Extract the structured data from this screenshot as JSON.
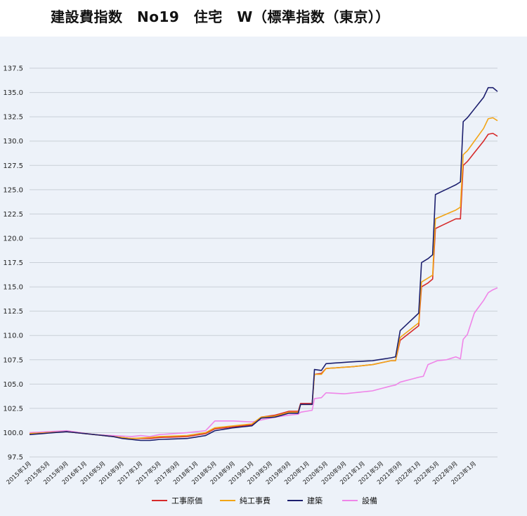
{
  "title": "建設費指数　No19　住宅　W（標準指数（東京））",
  "colors": {
    "background": "#edf2f9",
    "grid": "#c9cfd8"
  },
  "chart_data": {
    "type": "line",
    "ylim": [
      97.5,
      137.5
    ],
    "yticks": [
      "97.5",
      "100.0",
      "102.5",
      "105.0",
      "107.5",
      "110.0",
      "112.5",
      "115.0",
      "117.5",
      "120.0",
      "122.5",
      "125.0",
      "127.5",
      "130.0",
      "132.5",
      "135.0",
      "137.5"
    ],
    "grid": true,
    "legend_position": "bottom",
    "x_tick_labels": [
      "2015年1月",
      "2015年5月",
      "2015年9月",
      "2016年1月",
      "2016年5月",
      "2016年9月",
      "2017年1月",
      "2017年5月",
      "2017年9月",
      "2018年1月",
      "2018年5月",
      "2018年9月",
      "2019年1月",
      "2019年5月",
      "2019年9月",
      "2020年1月",
      "2020年5月",
      "2020年9月",
      "2021年1月",
      "2021年5月",
      "2021年9月",
      "2022年1月",
      "2022年5月",
      "2022年9月",
      "2023年1月"
    ],
    "n_points": 102,
    "series": [
      {
        "name": "工事原価",
        "color": "#d62a2a",
        "anchors": [
          [
            0,
            99.9
          ],
          [
            8,
            100.1
          ],
          [
            14,
            99.8
          ],
          [
            18,
            99.6
          ],
          [
            22,
            99.4
          ],
          [
            26,
            99.4
          ],
          [
            28,
            99.5
          ],
          [
            34,
            99.6
          ],
          [
            38,
            99.9
          ],
          [
            40,
            100.4
          ],
          [
            44,
            100.6
          ],
          [
            48,
            100.8
          ],
          [
            50,
            101.6
          ],
          [
            53,
            101.8
          ],
          [
            56,
            102.2
          ],
          [
            58,
            102.2
          ],
          [
            58.5,
            103.0
          ],
          [
            61,
            103.0
          ],
          [
            61.5,
            106.0
          ],
          [
            63,
            106.1
          ],
          [
            64,
            106.6
          ],
          [
            70,
            106.8
          ],
          [
            74,
            107.0
          ],
          [
            78,
            107.4
          ],
          [
            79,
            107.4
          ],
          [
            80,
            109.5
          ],
          [
            84,
            111.0
          ],
          [
            84.6,
            115.0
          ],
          [
            86,
            115.4
          ],
          [
            87,
            115.8
          ],
          [
            87.6,
            121.0
          ],
          [
            92,
            122.0
          ],
          [
            93,
            122.0
          ],
          [
            93.6,
            127.5
          ],
          [
            94.5,
            127.9
          ],
          [
            98,
            130.0
          ],
          [
            99,
            130.7
          ],
          [
            100,
            130.8
          ],
          [
            101,
            130.5
          ],
          [
            102,
            130.3
          ]
        ]
      },
      {
        "name": "純工事費",
        "color": "#f2a516",
        "anchors": [
          [
            0,
            99.9
          ],
          [
            8,
            100.1
          ],
          [
            14,
            99.8
          ],
          [
            18,
            99.6
          ],
          [
            22,
            99.4
          ],
          [
            26,
            99.5
          ],
          [
            28,
            99.6
          ],
          [
            34,
            99.7
          ],
          [
            38,
            100.0
          ],
          [
            40,
            100.5
          ],
          [
            44,
            100.7
          ],
          [
            48,
            100.9
          ],
          [
            50,
            101.6
          ],
          [
            53,
            101.7
          ],
          [
            56,
            102.1
          ],
          [
            58,
            102.1
          ],
          [
            58.5,
            102.9
          ],
          [
            61,
            102.9
          ],
          [
            61.5,
            106.0
          ],
          [
            63,
            106.0
          ],
          [
            64,
            106.6
          ],
          [
            70,
            106.8
          ],
          [
            74,
            107.0
          ],
          [
            78,
            107.4
          ],
          [
            79,
            107.4
          ],
          [
            80,
            109.8
          ],
          [
            84,
            111.3
          ],
          [
            84.6,
            115.5
          ],
          [
            86,
            115.9
          ],
          [
            87,
            116.2
          ],
          [
            87.6,
            122.0
          ],
          [
            92,
            122.9
          ],
          [
            93,
            123.2
          ],
          [
            93.6,
            128.6
          ],
          [
            94.5,
            129.0
          ],
          [
            98,
            131.3
          ],
          [
            99,
            132.3
          ],
          [
            100,
            132.4
          ],
          [
            101,
            132.1
          ],
          [
            102,
            131.9
          ]
        ]
      },
      {
        "name": "建築",
        "color": "#1c1f6e",
        "anchors": [
          [
            0,
            99.8
          ],
          [
            8,
            100.1
          ],
          [
            14,
            99.8
          ],
          [
            18,
            99.6
          ],
          [
            20,
            99.4
          ],
          [
            22,
            99.3
          ],
          [
            24,
            99.2
          ],
          [
            26,
            99.2
          ],
          [
            28,
            99.3
          ],
          [
            34,
            99.4
          ],
          [
            38,
            99.7
          ],
          [
            40,
            100.2
          ],
          [
            44,
            100.5
          ],
          [
            48,
            100.7
          ],
          [
            50,
            101.5
          ],
          [
            53,
            101.6
          ],
          [
            56,
            102.0
          ],
          [
            58,
            102.0
          ],
          [
            58.5,
            102.9
          ],
          [
            61,
            102.9
          ],
          [
            61.5,
            106.5
          ],
          [
            63,
            106.4
          ],
          [
            64,
            107.1
          ],
          [
            70,
            107.3
          ],
          [
            74,
            107.4
          ],
          [
            78,
            107.7
          ],
          [
            79,
            107.8
          ],
          [
            80,
            110.5
          ],
          [
            84,
            112.3
          ],
          [
            84.6,
            117.5
          ],
          [
            86,
            117.9
          ],
          [
            87,
            118.3
          ],
          [
            87.6,
            124.5
          ],
          [
            92,
            125.5
          ],
          [
            93,
            125.8
          ],
          [
            93.6,
            132.0
          ],
          [
            94.5,
            132.4
          ],
          [
            98,
            134.5
          ],
          [
            99,
            135.5
          ],
          [
            100,
            135.5
          ],
          [
            101,
            135.1
          ],
          [
            102,
            134.9
          ]
        ]
      },
      {
        "name": "設備",
        "color": "#ef85e8",
        "anchors": [
          [
            0,
            100.0
          ],
          [
            8,
            100.2
          ],
          [
            14,
            99.8
          ],
          [
            18,
            99.7
          ],
          [
            22,
            99.6
          ],
          [
            24,
            99.7
          ],
          [
            26,
            99.6
          ],
          [
            28,
            99.8
          ],
          [
            34,
            100.0
          ],
          [
            38,
            100.2
          ],
          [
            40,
            101.2
          ],
          [
            44,
            101.2
          ],
          [
            48,
            101.1
          ],
          [
            50,
            101.3
          ],
          [
            53,
            101.6
          ],
          [
            56,
            101.8
          ],
          [
            58,
            101.9
          ],
          [
            58.5,
            102.1
          ],
          [
            61,
            102.3
          ],
          [
            61.5,
            103.5
          ],
          [
            63,
            103.6
          ],
          [
            64,
            104.1
          ],
          [
            68,
            104.0
          ],
          [
            74,
            104.3
          ],
          [
            78,
            104.8
          ],
          [
            79,
            104.9
          ],
          [
            80,
            105.2
          ],
          [
            84,
            105.7
          ],
          [
            85,
            105.8
          ],
          [
            86,
            107.0
          ],
          [
            88,
            107.4
          ],
          [
            90,
            107.5
          ],
          [
            92,
            107.8
          ],
          [
            93,
            107.6
          ],
          [
            93.6,
            109.6
          ],
          [
            94.5,
            110.1
          ],
          [
            96,
            112.3
          ],
          [
            98,
            113.6
          ],
          [
            99,
            114.4
          ],
          [
            100,
            114.7
          ],
          [
            101,
            114.9
          ],
          [
            102,
            115.0
          ]
        ]
      }
    ]
  }
}
